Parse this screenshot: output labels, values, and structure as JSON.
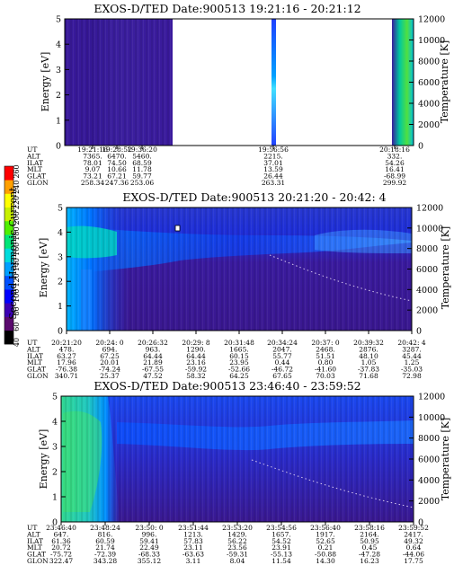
{
  "chart_data": [
    {
      "type": "heatmap",
      "title": "EXOS-D/TED   Date:900513  19:21:16 - 20:21:12",
      "ylabel": "Energy [eV]",
      "y2label": "Temperature [K]",
      "ylim": [
        0,
        5
      ],
      "yticks": [
        "0",
        "1",
        "2",
        "3",
        "4",
        "5"
      ],
      "y2lim": [
        0,
        12000
      ],
      "y2ticks": [
        "0",
        "2000",
        "4000",
        "6000",
        "8000",
        "10000",
        "12000"
      ],
      "has_colorbar": false,
      "orbit_rows": [
        "UT",
        "ALT",
        "ILAT",
        "MLT",
        "GLAT",
        "GLON"
      ],
      "orbit_columns": [
        [
          "19:21:16",
          "7365.",
          "78.01",
          "9.07",
          "73.21",
          "258.34"
        ],
        [
          "19:28:52",
          "6470.",
          "74.50",
          "10.66",
          "67.21",
          "247.36"
        ],
        [
          "19:36:20",
          "5460.",
          "68.59",
          "11.78",
          "59.77",
          "253.06"
        ],
        [
          "19:56:56",
          "2215.",
          "37.01",
          "13.59",
          "26.44",
          "263.31"
        ],
        [
          "20:18:16",
          "332.",
          "54.26",
          "16.41",
          "-68.99",
          "299.92"
        ]
      ]
    },
    {
      "type": "heatmap",
      "title": "EXOS-D/TED   Date:900513  20:21:20 - 20:42: 4",
      "ylabel": "Energy [eV]",
      "y2label": "Temperature [K]",
      "ylim": [
        0,
        5
      ],
      "yticks": [
        "0",
        "1",
        "2",
        "3",
        "4",
        "5"
      ],
      "y2lim": [
        0,
        12000
      ],
      "y2ticks": [
        "0",
        "2000",
        "4000",
        "6000",
        "8000",
        "10000",
        "12000"
      ],
      "has_colorbar": true,
      "colorbar_label": "Second Harmonic Current",
      "colorbar_ticks": [
        "40",
        "60",
        "80",
        "100",
        "120",
        "140",
        "160",
        "180",
        "200",
        "220",
        "240",
        "260"
      ],
      "colorbar_colors": [
        "#000000",
        "#5a0a6e",
        "#3c00b4",
        "#0000ff",
        "#0050ff",
        "#00a0ff",
        "#00dcdc",
        "#00e678",
        "#50f000",
        "#c8f000",
        "#ffff00",
        "#ffa000",
        "#ff0000"
      ],
      "orbit_rows": [
        "UT",
        "ALT",
        "ILAT",
        "MLT",
        "GLAT",
        "GLON"
      ],
      "orbit_columns": [
        [
          "20:21:20",
          "478.",
          "63.27",
          "17.96",
          "-76.38",
          "340.71"
        ],
        [
          "20:24: 0",
          "694.",
          "67.25",
          "20.01",
          "-74.24",
          "25.37"
        ],
        [
          "20:26:32",
          "963.",
          "64.44",
          "21.89",
          "-67.55",
          "47.52"
        ],
        [
          "20:29: 8",
          "1290.",
          "64.44",
          "23.16",
          "-59.92",
          "58.32"
        ],
        [
          "20:31:48",
          "1665.",
          "60.15",
          "23.95",
          "-52.66",
          "64.25"
        ],
        [
          "20:34:24",
          "2047.",
          "55.77",
          "0.44",
          "-46.72",
          "67.65"
        ],
        [
          "20:37: 0",
          "2468.",
          "51.51",
          "0.80",
          "-41.60",
          "70.03"
        ],
        [
          "20:39:32",
          "2876.",
          "48.10",
          "1.05",
          "-37.83",
          "71.68"
        ],
        [
          "20:42: 4",
          "3287.",
          "45.44",
          "1.25",
          "-35.03",
          "72.98"
        ]
      ]
    },
    {
      "type": "heatmap",
      "title": "EXOS-D/TED   Date:900513  23:46:40 - 23:59:52",
      "ylabel": "Energy [eV]",
      "y2label": "Temperature [K]",
      "ylim": [
        0,
        5
      ],
      "yticks": [
        "0",
        "1",
        "2",
        "3",
        "4",
        "5"
      ],
      "y2lim": [
        0,
        12000
      ],
      "y2ticks": [
        "0",
        "2000",
        "4000",
        "6000",
        "8000",
        "10000",
        "12000"
      ],
      "has_colorbar": false,
      "orbit_rows": [
        "UT",
        "ALT",
        "ILAT",
        "MLT",
        "GLAT",
        "GLON"
      ],
      "orbit_columns": [
        [
          "23:46:40",
          "647.",
          "61.36",
          "20.72",
          "-75.72",
          "322.47"
        ],
        [
          "23:48:24",
          "816.",
          "60.59",
          "21.74",
          "-72.39",
          "343.28"
        ],
        [
          "23:50: 0",
          "996.",
          "59.41",
          "22.49",
          "-68.33",
          "355.12"
        ],
        [
          "23:51:44",
          "1213.",
          "57.83",
          "23.11",
          "-63.63",
          "3.11"
        ],
        [
          "23:53:20",
          "1429.",
          "56.22",
          "23.56",
          "-59.31",
          "8.04"
        ],
        [
          "23:54:56",
          "1657.",
          "54.52",
          "23.91",
          "-55.13",
          "11.54"
        ],
        [
          "23:56:40",
          "1917.",
          "52.65",
          "0.21",
          "-50.88",
          "14.30"
        ],
        [
          "23:58:16",
          "2164.",
          "50.95",
          "0.45",
          "-47.28",
          "16.23"
        ],
        [
          "23:59:52",
          "2417.",
          "49.32",
          "0.64",
          "-44.06",
          "17.75"
        ]
      ]
    }
  ]
}
